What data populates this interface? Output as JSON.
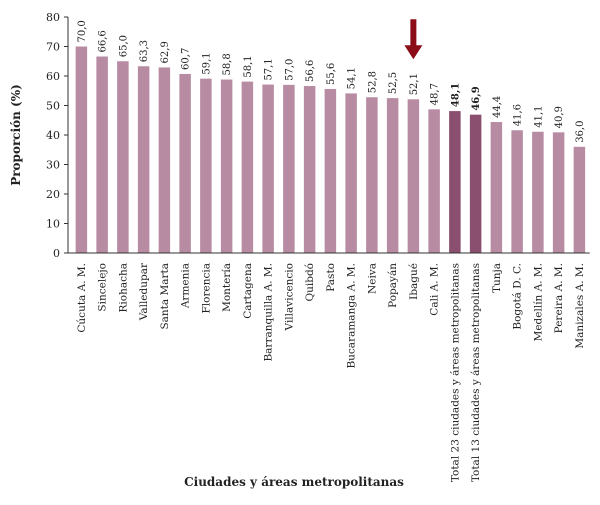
{
  "chart_data": {
    "type": "bar",
    "ylabel": "Proporción (%)",
    "xlabel": "Ciudades y áreas metropolitanas",
    "ylim": [
      0,
      80
    ],
    "yticks": [
      "0",
      "10",
      "20",
      "30",
      "40",
      "50",
      "60",
      "70",
      "80"
    ],
    "grid": false,
    "colors": {
      "bar": "#b78ca2",
      "highlight": "#8a4e6f",
      "arrow": "#8b0d17",
      "axis": "#333333"
    },
    "categories": [
      "Cúcuta A. M.",
      "Sincelejo",
      "Riohacha",
      "Valledupar",
      "Santa Marta",
      "Armenia",
      "Florencia",
      "Montería",
      "Cartagena",
      "Barranquilla A. M.",
      "Villavicencio",
      "Quibdó",
      "Pasto",
      "Bucaramanga A. M.",
      "Neiva",
      "Popayán",
      "Ibagué",
      "Cali A. M.",
      "Total 23 ciudades y áreas metropolitanas",
      "Total 13 ciudades y áreas metropolitanas",
      "Tunja",
      "Bogotá D. C.",
      "Medellín A. M.",
      "Pereira A. M.",
      "Manizales A. M."
    ],
    "values": [
      70.0,
      66.6,
      65.0,
      63.3,
      62.9,
      60.7,
      59.1,
      58.8,
      58.1,
      57.1,
      57.0,
      56.6,
      55.6,
      54.1,
      52.8,
      52.5,
      52.1,
      48.7,
      48.1,
      46.9,
      44.4,
      41.6,
      41.1,
      40.9,
      36.0
    ],
    "value_labels": [
      "70,0",
      "66,6",
      "65,0",
      "63,3",
      "62,9",
      "60,7",
      "59,1",
      "58,8",
      "58,1",
      "57,1",
      "57,0",
      "56,6",
      "55,6",
      "54,1",
      "52,8",
      "52,5",
      "52,1",
      "48,7",
      "48,1",
      "46,9",
      "44,4",
      "41,6",
      "41,1",
      "40,9",
      "36,0"
    ],
    "highlighted": [
      "Total 23 ciudades y áreas metropolitanas",
      "Total 13 ciudades y áreas metropolitanas"
    ],
    "arrow_marks": [
      "Ibagué"
    ]
  }
}
